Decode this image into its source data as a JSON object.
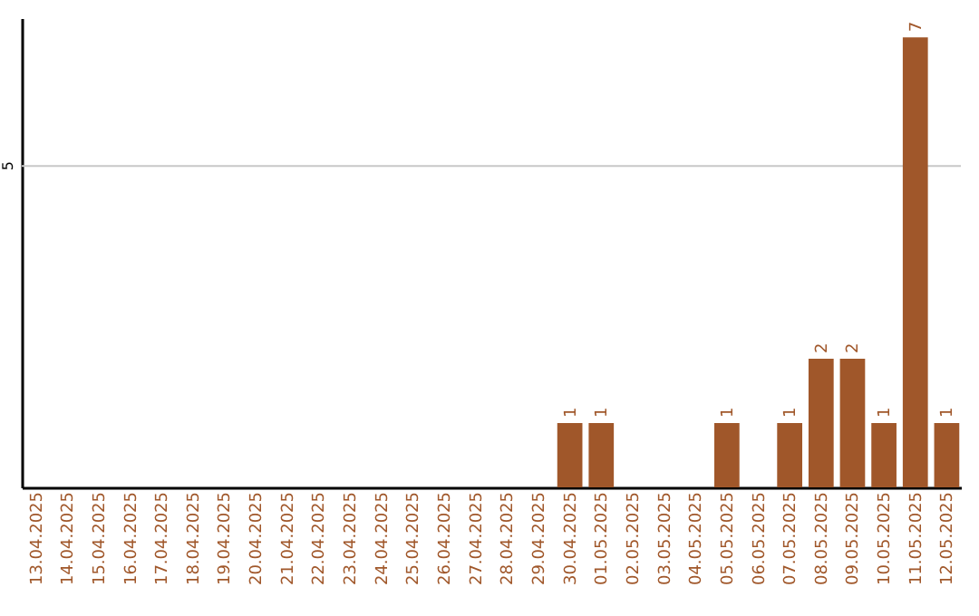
{
  "chart_data": {
    "type": "bar",
    "categories": [
      "13.04.2025",
      "14.04.2025",
      "15.04.2025",
      "16.04.2025",
      "17.04.2025",
      "18.04.2025",
      "19.04.2025",
      "20.04.2025",
      "21.04.2025",
      "22.04.2025",
      "23.04.2025",
      "24.04.2025",
      "25.04.2025",
      "26.04.2025",
      "27.04.2025",
      "28.04.2025",
      "29.04.2025",
      "30.04.2025",
      "01.05.2025",
      "02.05.2025",
      "03.05.2025",
      "04.05.2025",
      "05.05.2025",
      "06.05.2025",
      "07.05.2025",
      "08.05.2025",
      "09.05.2025",
      "10.05.2025",
      "11.05.2025",
      "12.05.2025"
    ],
    "values": [
      null,
      null,
      null,
      null,
      null,
      null,
      null,
      null,
      null,
      null,
      null,
      null,
      null,
      null,
      null,
      null,
      null,
      1,
      1,
      null,
      null,
      null,
      1,
      null,
      1,
      2,
      2,
      1,
      7,
      1
    ],
    "data_labels": true,
    "color": "#a0572a",
    "ylim": [
      0,
      7.3
    ],
    "ref_lines": [
      {
        "axis": "y",
        "value": 5,
        "label": "5",
        "color": "#c8c8c8"
      }
    ]
  }
}
